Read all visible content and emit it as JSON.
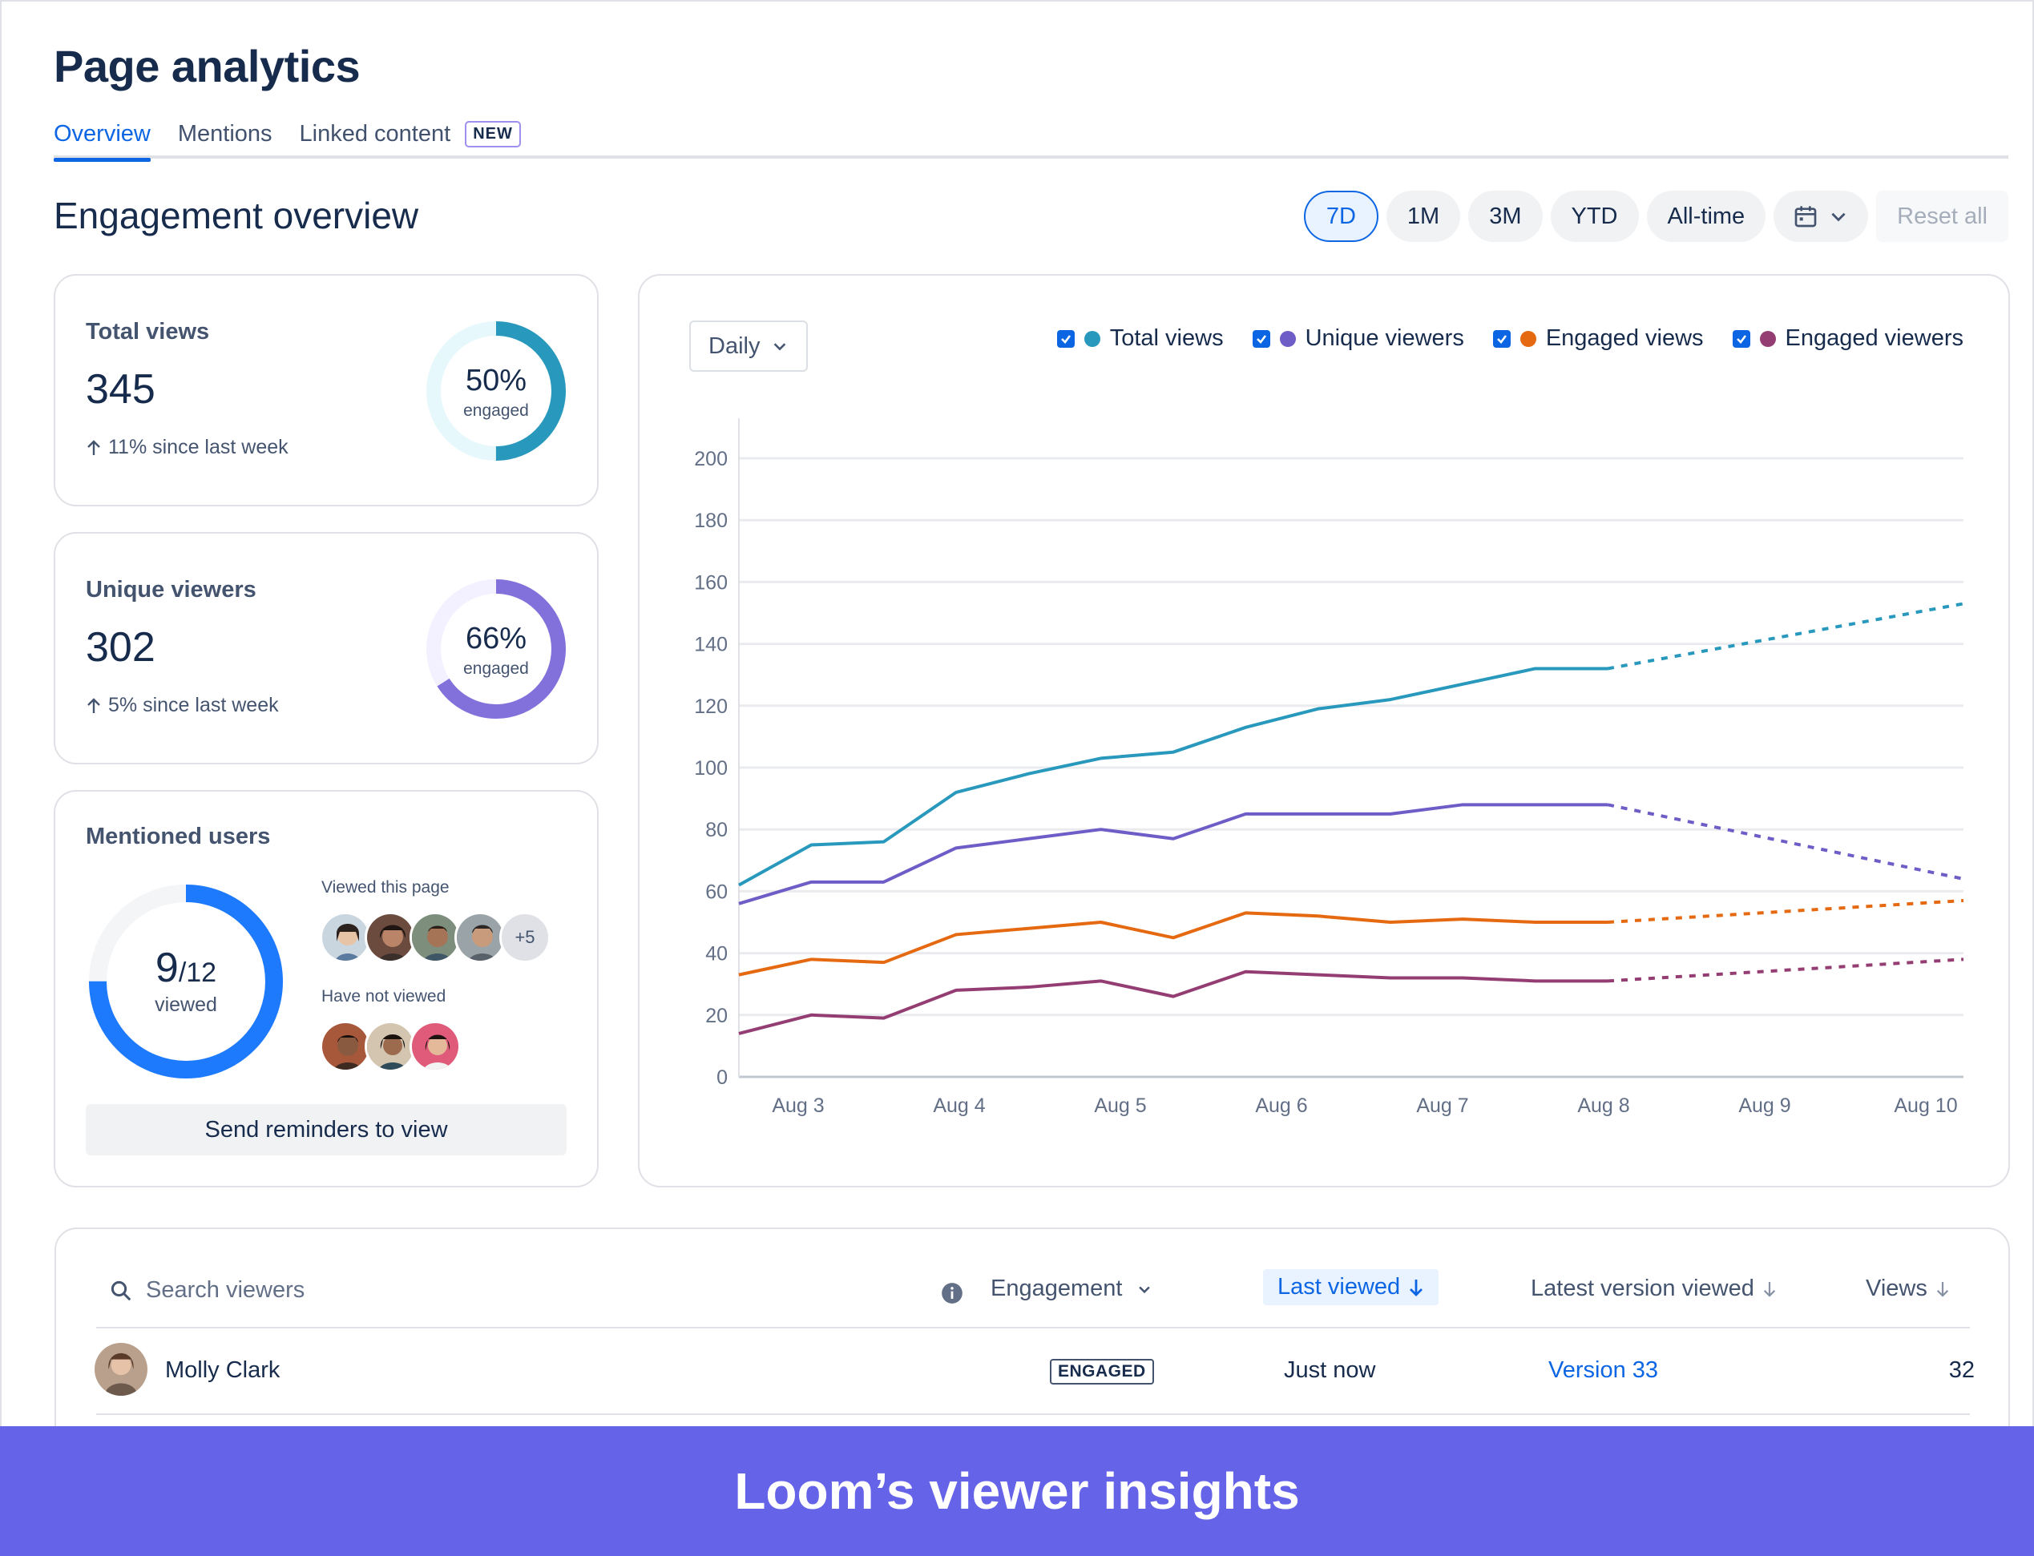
{
  "page": {
    "title": "Page analytics",
    "tabs": [
      {
        "label": "Overview",
        "active": true
      },
      {
        "label": "Mentions"
      },
      {
        "label": "Linked content",
        "badge": "NEW"
      }
    ]
  },
  "engagement": {
    "title": "Engagement overview",
    "ranges": [
      "7D",
      "1M",
      "3M",
      "YTD",
      "All-time"
    ],
    "active_range": "7D",
    "calendar_icon": "calendar-icon",
    "reset_label": "Reset all"
  },
  "total_views": {
    "label": "Total views",
    "value": "345",
    "delta": "11% since last week",
    "pct": "50%",
    "pct_value": 0.5,
    "pct_sub": "engaged",
    "color": "#2898bd"
  },
  "unique_viewers": {
    "label": "Unique viewers",
    "value": "302",
    "delta": "5% since last week",
    "pct": "66%",
    "pct_value": 0.66,
    "pct_sub": "engaged",
    "color": "#8270db"
  },
  "mentioned": {
    "label": "Mentioned users",
    "viewed": "9",
    "total": "/12",
    "viewed_value": 0.75,
    "sub": "viewed",
    "viewed_label": "Viewed this page",
    "not_viewed_label": "Have not viewed",
    "more": "+5",
    "button": "Send reminders to view",
    "color": "#1d7afc"
  },
  "chart": {
    "interval": "Daily",
    "legend": [
      {
        "label": "Total views",
        "color": "#2898bd"
      },
      {
        "label": "Unique viewers",
        "color": "#6e5dc6"
      },
      {
        "label": "Engaged views",
        "color": "#e56910"
      },
      {
        "label": "Engaged viewers",
        "color": "#943d73"
      }
    ]
  },
  "chart_data": {
    "type": "line",
    "x": [
      "Aug 3",
      "Aug 3.5",
      "Aug 4",
      "Aug 4.5",
      "Aug 5",
      "Aug 5.5",
      "Aug 6",
      "Aug 6.5",
      "Aug 7",
      "Aug 7.5",
      "Aug 8",
      "Aug 8.5",
      "Aug 9",
      "Aug 10"
    ],
    "x_ticks": [
      "Aug 3",
      "Aug 4",
      "Aug 5",
      "Aug 6",
      "Aug 7",
      "Aug 8",
      "Aug 9",
      "Aug 10"
    ],
    "ylim": [
      0,
      200
    ],
    "y_ticks": [
      0,
      20,
      40,
      60,
      80,
      100,
      120,
      140,
      160,
      180,
      200
    ],
    "grid": true,
    "projected_from_index": 12,
    "series": [
      {
        "name": "Total views",
        "color": "#2898bd",
        "values": [
          62,
          75,
          76,
          92,
          98,
          103,
          105,
          113,
          119,
          122,
          127,
          132,
          132,
          153
        ]
      },
      {
        "name": "Unique viewers",
        "color": "#6e5dc6",
        "values": [
          56,
          63,
          63,
          74,
          77,
          80,
          77,
          85,
          85,
          85,
          88,
          88,
          88,
          64
        ]
      },
      {
        "name": "Engaged views",
        "color": "#e56910",
        "values": [
          33,
          38,
          37,
          46,
          48,
          50,
          45,
          53,
          52,
          50,
          51,
          50,
          50,
          57
        ]
      },
      {
        "name": "Engaged viewers",
        "color": "#943d73",
        "values": [
          14,
          20,
          19,
          28,
          29,
          31,
          26,
          34,
          33,
          32,
          32,
          31,
          31,
          38
        ]
      }
    ]
  },
  "table": {
    "search_placeholder": "Search viewers",
    "columns": {
      "engagement": "Engagement",
      "last_viewed": "Last viewed",
      "latest_version": "Latest version viewed",
      "views": "Views"
    },
    "rows": [
      {
        "name": "Molly Clark",
        "badge": "ENGAGED",
        "last_viewed": "Just now",
        "version": "Version 33",
        "views": "32"
      }
    ]
  },
  "banner": {
    "text": "Loom’s viewer insights"
  }
}
